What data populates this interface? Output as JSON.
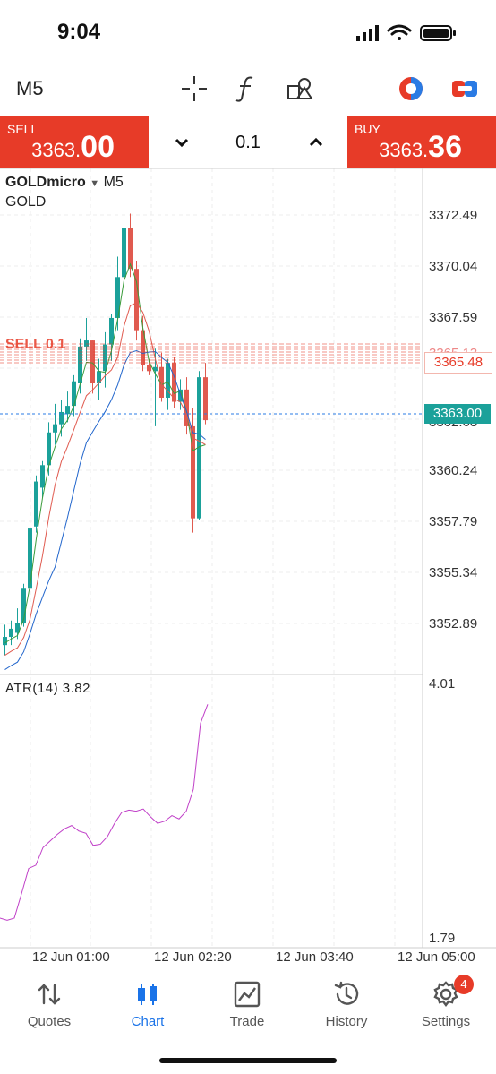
{
  "status": {
    "time": "9:04"
  },
  "toolbar": {
    "timeframe": "M5",
    "tools": [
      "crosshair-icon",
      "function-icon",
      "objects-icon",
      "indicator-toggle-icon",
      "trade-toggle-icon"
    ]
  },
  "trade": {
    "sell_label": "SELL",
    "sell_price_small": "3363.",
    "sell_price_big": "00",
    "buy_label": "BUY",
    "buy_price_small": "3363.",
    "buy_price_big": "36",
    "lot": "0.1"
  },
  "chart": {
    "symbol": "GOLDmicro",
    "symbol_tf": "M5",
    "description": "GOLD",
    "current_price": "3363.00",
    "order_price": "3365.48",
    "order_label": "SELL 0.1",
    "atr_label": "ATR(14) 3.82",
    "y_labels": [
      "3372.49",
      "3370.04",
      "3367.59",
      "3365.13",
      "3362.68",
      "3360.24",
      "3357.79",
      "3355.34",
      "3352.89"
    ],
    "atr_labels": [
      "4.01",
      "1.79"
    ],
    "x_labels": [
      "12 Jun 01:00",
      "12 Jun 02:20",
      "12 Jun 03:40",
      "12 Jun 05:00"
    ]
  },
  "chart_data": {
    "type": "candlestick",
    "symbol": "GOLDmicro",
    "timeframe": "M5",
    "ylim": [
      3351.0,
      3374.0
    ],
    "candles": [
      {
        "o": 3352.0,
        "h": 3353.0,
        "l": 3351.5,
        "c": 3352.4
      },
      {
        "o": 3352.4,
        "h": 3353.2,
        "l": 3352.0,
        "c": 3352.8
      },
      {
        "o": 3352.6,
        "h": 3353.8,
        "l": 3352.3,
        "c": 3353.1
      },
      {
        "o": 3353.1,
        "h": 3355.0,
        "l": 3352.9,
        "c": 3354.8
      },
      {
        "o": 3354.8,
        "h": 3358.0,
        "l": 3354.5,
        "c": 3357.7
      },
      {
        "o": 3357.8,
        "h": 3360.3,
        "l": 3357.5,
        "c": 3360.0
      },
      {
        "o": 3359.7,
        "h": 3361.0,
        "l": 3359.2,
        "c": 3360.8
      },
      {
        "o": 3360.8,
        "h": 3362.9,
        "l": 3360.3,
        "c": 3362.4
      },
      {
        "o": 3362.4,
        "h": 3363.8,
        "l": 3361.8,
        "c": 3362.8
      },
      {
        "o": 3362.8,
        "h": 3364.0,
        "l": 3362.2,
        "c": 3363.4
      },
      {
        "o": 3363.3,
        "h": 3364.4,
        "l": 3362.9,
        "c": 3363.7
      },
      {
        "o": 3363.7,
        "h": 3365.2,
        "l": 3363.2,
        "c": 3364.9
      },
      {
        "o": 3364.8,
        "h": 3367.0,
        "l": 3364.3,
        "c": 3366.6
      },
      {
        "o": 3366.6,
        "h": 3368.0,
        "l": 3365.9,
        "c": 3366.9
      },
      {
        "o": 3366.9,
        "h": 3366.9,
        "l": 3364.3,
        "c": 3364.8
      },
      {
        "o": 3364.8,
        "h": 3366.0,
        "l": 3364.0,
        "c": 3365.4
      },
      {
        "o": 3365.4,
        "h": 3367.3,
        "l": 3364.6,
        "c": 3366.7
      },
      {
        "o": 3366.7,
        "h": 3368.2,
        "l": 3365.9,
        "c": 3368.0
      },
      {
        "o": 3368.0,
        "h": 3371.0,
        "l": 3367.4,
        "c": 3370.0
      },
      {
        "o": 3370.0,
        "h": 3373.9,
        "l": 3369.3,
        "c": 3372.4
      },
      {
        "o": 3372.4,
        "h": 3373.1,
        "l": 3370.0,
        "c": 3370.4
      },
      {
        "o": 3370.4,
        "h": 3370.8,
        "l": 3366.9,
        "c": 3367.4
      },
      {
        "o": 3367.4,
        "h": 3368.1,
        "l": 3365.4,
        "c": 3365.7
      },
      {
        "o": 3365.7,
        "h": 3366.0,
        "l": 3365.2,
        "c": 3365.4
      },
      {
        "o": 3365.4,
        "h": 3366.5,
        "l": 3362.7,
        "c": 3365.6
      },
      {
        "o": 3365.6,
        "h": 3366.3,
        "l": 3363.9,
        "c": 3364.1
      },
      {
        "o": 3364.1,
        "h": 3366.0,
        "l": 3363.5,
        "c": 3365.8
      },
      {
        "o": 3365.8,
        "h": 3366.1,
        "l": 3363.6,
        "c": 3363.9
      },
      {
        "o": 3363.9,
        "h": 3365.0,
        "l": 3363.5,
        "c": 3364.5
      },
      {
        "o": 3364.5,
        "h": 3365.1,
        "l": 3362.3,
        "c": 3362.7
      },
      {
        "o": 3362.7,
        "h": 3363.6,
        "l": 3357.5,
        "c": 3358.2
      },
      {
        "o": 3358.2,
        "h": 3365.4,
        "l": 3358.1,
        "c": 3365.1
      },
      {
        "o": 3365.1,
        "h": 3365.8,
        "l": 3362.8,
        "c": 3363.0
      }
    ],
    "atr": {
      "name": "ATR(14)",
      "ylim": [
        1.79,
        4.01
      ],
      "values": [
        1.88,
        1.86,
        1.88,
        2.1,
        2.33,
        2.36,
        2.52,
        2.58,
        2.64,
        2.69,
        2.72,
        2.67,
        2.65,
        2.54,
        2.55,
        2.62,
        2.74,
        2.84,
        2.86,
        2.85,
        2.87,
        2.8,
        2.74,
        2.76,
        2.81,
        2.78,
        2.85,
        3.05,
        3.65,
        3.82
      ]
    },
    "ma_colors": [
      "#3a9b3a",
      "#e05a4f",
      "#2266cc"
    ]
  }
}
